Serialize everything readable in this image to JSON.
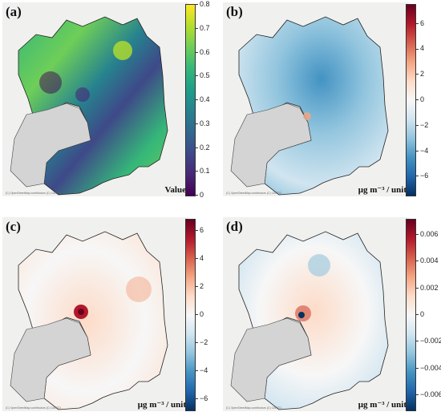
{
  "credit": "(C) OpenStreetMap contributors (C) CARTO",
  "panels": [
    {
      "label": "(a)",
      "units": "Value",
      "colormap": "viridis",
      "ticks": [
        "0.8",
        "0.7",
        "0.6",
        "0.5",
        "0.4",
        "0.3",
        "0.2",
        "0.1",
        "0"
      ]
    },
    {
      "label": "(b)",
      "units": "μg m⁻³ / unit",
      "colormap": "RdBu_r",
      "ticks": [
        "6",
        "4",
        "2",
        "0",
        "−2",
        "−4",
        "−6"
      ]
    },
    {
      "label": "(c)",
      "units": "μg m⁻³ / unit",
      "colormap": "RdBu_r",
      "ticks": [
        "6",
        "4",
        "2",
        "0",
        "−2",
        "−4",
        "−6"
      ]
    },
    {
      "label": "(d)",
      "units": "μg m⁻³ / unit",
      "colormap": "RdBu_r",
      "ticks": [
        "0.006",
        "0.004",
        "0.002",
        "0",
        "−0.002",
        "−0.004",
        "−0.006"
      ]
    }
  ],
  "colors": {
    "viridis": [
      "#fde725",
      "#b5de2b",
      "#6ece58",
      "#35b779",
      "#1f9e89",
      "#26828e",
      "#31688e",
      "#3e4989",
      "#482878",
      "#440154"
    ],
    "diverging": [
      "#67001f",
      "#b2182b",
      "#d6604d",
      "#f4a582",
      "#fddbc7",
      "#f7f7f7",
      "#d1e5f0",
      "#92c5de",
      "#4393c3",
      "#2166ac",
      "#053061"
    ],
    "bay": "#d4d4d4",
    "background": "#f0f0ee"
  }
}
